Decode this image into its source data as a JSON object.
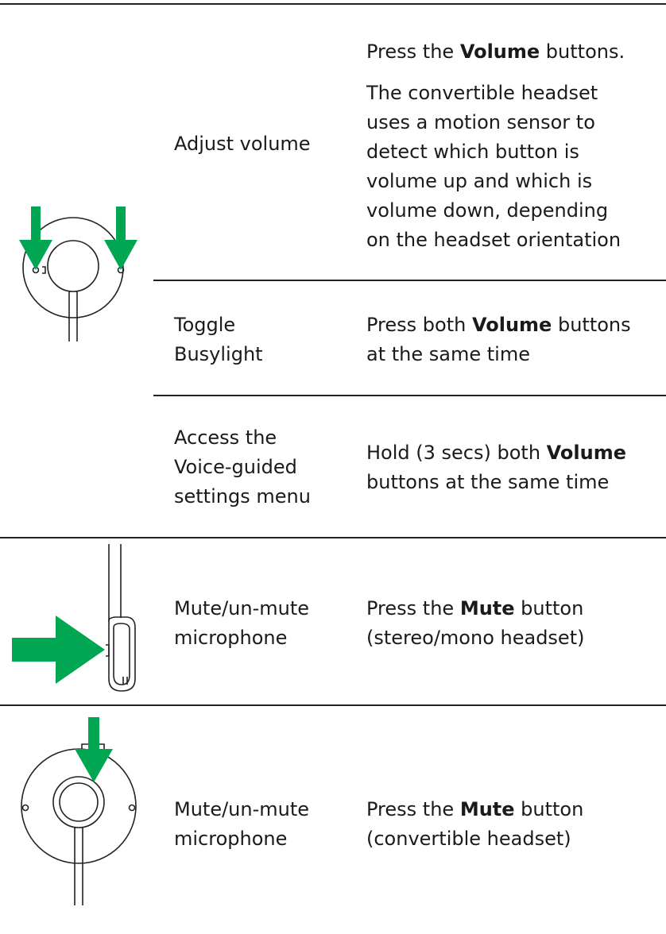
{
  "rows": [
    {
      "function": [
        "Adjust volume"
      ],
      "action": [
        [
          [
            {
              "text": "Press the "
            },
            {
              "text": "Volume",
              "bold": true
            },
            {
              "text": " buttons."
            }
          ]
        ],
        [
          [
            {
              "text": "The convertible headset"
            }
          ],
          [
            {
              "text": "uses a motion sensor to"
            }
          ],
          [
            {
              "text": "detect which button is"
            }
          ],
          [
            {
              "text": "volume up and which is"
            }
          ],
          [
            {
              "text": "volume down, depending"
            }
          ],
          [
            {
              "text": "on the headset orientation"
            }
          ]
        ]
      ]
    },
    {
      "function": [
        "Toggle",
        "Busylight"
      ],
      "action": [
        [
          [
            {
              "text": "Press both "
            },
            {
              "text": "Volume",
              "bold": true
            },
            {
              "text": " buttons"
            }
          ],
          [
            {
              "text": "at the same time"
            }
          ]
        ]
      ]
    },
    {
      "function": [
        "Access the",
        "Voice-guided",
        "settings menu"
      ],
      "action": [
        [
          [
            {
              "text": "Hold (3 secs) both "
            },
            {
              "text": "Volume",
              "bold": true
            }
          ],
          [
            {
              "text": "buttons at the same time"
            }
          ]
        ]
      ]
    },
    {
      "function": [
        "Mute/un-mute",
        "microphone"
      ],
      "action": [
        [
          [
            {
              "text": "Press the "
            },
            {
              "text": "Mute",
              "bold": true
            },
            {
              "text": " button"
            }
          ],
          [
            {
              "text": "(stereo/mono headset)"
            }
          ]
        ]
      ]
    },
    {
      "function": [
        "Mute/un-mute",
        "microphone"
      ],
      "action": [
        [
          [
            {
              "text": "Press the "
            },
            {
              "text": "Mute",
              "bold": true
            },
            {
              "text": " button"
            }
          ],
          [
            {
              "text": "(convertible headset)"
            }
          ]
        ]
      ]
    }
  ]
}
